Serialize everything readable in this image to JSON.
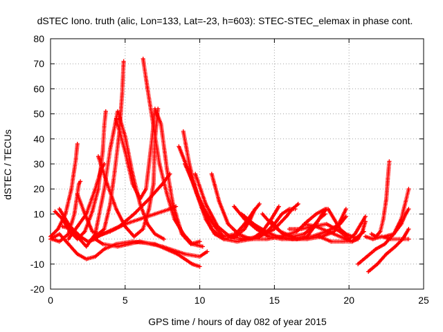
{
  "chart_data": {
    "type": "scatter",
    "title": "dSTEC Iono. truth (alic, Lon=133, Lat=-23, h=603): STEC-STEC_elemax in phase cont.",
    "xlabel": "GPS time / hours of day 082 of year 2015",
    "ylabel": "dSTEC  / TECUs",
    "xlim": [
      0,
      25
    ],
    "ylim": [
      -20,
      80
    ],
    "xticks": [
      0,
      5,
      10,
      15,
      20,
      25
    ],
    "yticks": [
      -20,
      -10,
      0,
      10,
      20,
      30,
      40,
      50,
      60,
      70,
      80
    ],
    "grid": true,
    "marker": "plus",
    "color": "#ff0000",
    "series": [
      {
        "points": [
          [
            0.0,
            1
          ],
          [
            0.5,
            4
          ],
          [
            1.0,
            10
          ],
          [
            1.4,
            20
          ],
          [
            1.7,
            32
          ],
          [
            1.8,
            38
          ]
        ]
      },
      {
        "points": [
          [
            0.1,
            0
          ],
          [
            0.6,
            -1
          ],
          [
            1.2,
            2
          ],
          [
            1.6,
            10
          ],
          [
            1.9,
            22
          ],
          [
            2.0,
            23
          ]
        ]
      },
      {
        "points": [
          [
            0.0,
            0
          ],
          [
            0.6,
            2
          ],
          [
            1.2,
            -2
          ],
          [
            1.8,
            -6
          ],
          [
            2.4,
            -8
          ],
          [
            3.0,
            -7
          ],
          [
            3.6,
            -4
          ],
          [
            4.4,
            -2
          ],
          [
            5.5,
            -1
          ],
          [
            7.0,
            -2
          ],
          [
            8.5,
            -6
          ],
          [
            9.5,
            -10
          ],
          [
            10.0,
            -11
          ]
        ]
      },
      {
        "points": [
          [
            0.8,
            5
          ],
          [
            1.5,
            4
          ],
          [
            2.0,
            1
          ],
          [
            2.5,
            -1
          ],
          [
            3.0,
            0
          ],
          [
            3.5,
            -2
          ],
          [
            4.5,
            -3
          ],
          [
            6.0,
            -1
          ],
          [
            7.5,
            -3
          ],
          [
            9.0,
            -6
          ],
          [
            10.0,
            -7
          ],
          [
            10.5,
            -5
          ]
        ]
      },
      {
        "points": [
          [
            0.3,
            11
          ],
          [
            0.8,
            8
          ],
          [
            1.3,
            3
          ],
          [
            1.8,
            0
          ],
          [
            2.3,
            3
          ],
          [
            2.8,
            11
          ],
          [
            3.2,
            20
          ],
          [
            3.5,
            35
          ],
          [
            3.6,
            45
          ],
          [
            3.7,
            51
          ]
        ]
      },
      {
        "points": [
          [
            1.8,
            18
          ],
          [
            2.3,
            10
          ],
          [
            2.8,
            3
          ],
          [
            3.2,
            2
          ],
          [
            3.6,
            4
          ],
          [
            4.0,
            14
          ],
          [
            4.3,
            27
          ],
          [
            4.6,
            42
          ],
          [
            4.8,
            58
          ],
          [
            4.9,
            71
          ]
        ]
      },
      {
        "points": [
          [
            0.6,
            12
          ],
          [
            1.2,
            6
          ],
          [
            1.8,
            1
          ],
          [
            2.4,
            -3
          ],
          [
            3.0,
            2
          ],
          [
            3.6,
            20
          ],
          [
            4.0,
            36
          ],
          [
            4.5,
            51
          ],
          [
            5.0,
            41
          ],
          [
            5.5,
            26
          ],
          [
            6.0,
            14
          ],
          [
            6.5,
            6
          ],
          [
            7.0,
            2
          ],
          [
            7.6,
            0
          ]
        ]
      },
      {
        "points": [
          [
            3.2,
            33
          ],
          [
            3.8,
            22
          ],
          [
            4.4,
            12
          ],
          [
            5.0,
            5
          ],
          [
            5.6,
            1
          ],
          [
            6.2,
            4
          ],
          [
            6.6,
            12
          ],
          [
            6.9,
            22
          ],
          [
            7.0,
            40
          ],
          [
            7.2,
            52
          ]
        ]
      },
      {
        "points": [
          [
            4.4,
            48
          ],
          [
            5.0,
            35
          ],
          [
            5.5,
            22
          ],
          [
            6.0,
            16
          ],
          [
            6.4,
            20
          ],
          [
            6.8,
            40
          ],
          [
            7.0,
            52
          ],
          [
            7.4,
            46
          ],
          [
            7.8,
            28
          ],
          [
            8.2,
            14
          ],
          [
            8.8,
            2
          ],
          [
            9.4,
            -2
          ],
          [
            10.0,
            -1
          ]
        ]
      },
      {
        "points": [
          [
            6.2,
            72
          ],
          [
            6.5,
            60
          ],
          [
            6.9,
            45
          ],
          [
            7.3,
            30
          ],
          [
            7.8,
            18
          ],
          [
            8.3,
            8
          ],
          [
            8.9,
            2
          ],
          [
            9.5,
            -2
          ],
          [
            10.2,
            -3
          ]
        ]
      },
      {
        "points": [
          [
            2.6,
            -1
          ],
          [
            3.5,
            2
          ],
          [
            4.6,
            5
          ],
          [
            5.6,
            10
          ],
          [
            6.6,
            16
          ],
          [
            7.5,
            22
          ],
          [
            8.0,
            26
          ]
        ]
      },
      {
        "points": [
          [
            3.0,
            1
          ],
          [
            4.0,
            3
          ],
          [
            5.0,
            6
          ],
          [
            6.0,
            8
          ],
          [
            7.0,
            10
          ],
          [
            8.0,
            12
          ],
          [
            8.4,
            13
          ]
        ]
      },
      {
        "points": [
          [
            1.2,
            0
          ],
          [
            1.8,
            5
          ],
          [
            2.4,
            10
          ],
          [
            3.0,
            20
          ],
          [
            3.4,
            28
          ],
          [
            3.6,
            30
          ]
        ]
      },
      {
        "points": [
          [
            8.9,
            43
          ],
          [
            9.3,
            30
          ],
          [
            9.8,
            18
          ],
          [
            10.4,
            8
          ],
          [
            11.0,
            2
          ],
          [
            11.6,
            0
          ],
          [
            12.4,
            1
          ],
          [
            13.0,
            4
          ],
          [
            13.4,
            8
          ],
          [
            13.7,
            12
          ]
        ]
      },
      {
        "points": [
          [
            8.6,
            37
          ],
          [
            9.2,
            28
          ],
          [
            9.8,
            18
          ],
          [
            10.4,
            11
          ],
          [
            11.0,
            5
          ],
          [
            11.6,
            1
          ],
          [
            12.4,
            2
          ],
          [
            13.0,
            6
          ],
          [
            13.6,
            11
          ],
          [
            14.0,
            14
          ]
        ]
      },
      {
        "points": [
          [
            9.0,
            30
          ],
          [
            9.6,
            22
          ],
          [
            10.2,
            12
          ],
          [
            10.8,
            4
          ],
          [
            11.6,
            0
          ],
          [
            12.5,
            -1
          ],
          [
            13.5,
            0
          ],
          [
            14.2,
            3
          ],
          [
            14.8,
            8
          ],
          [
            15.3,
            13
          ]
        ]
      },
      {
        "points": [
          [
            9.7,
            26
          ],
          [
            10.4,
            14
          ],
          [
            11.2,
            5
          ],
          [
            12.0,
            1
          ],
          [
            13.0,
            0
          ],
          [
            14.0,
            1
          ],
          [
            15.0,
            4
          ],
          [
            15.8,
            9
          ],
          [
            16.2,
            12
          ],
          [
            16.6,
            14
          ]
        ]
      },
      {
        "points": [
          [
            10.8,
            26
          ],
          [
            11.3,
            15
          ],
          [
            11.9,
            6
          ],
          [
            12.6,
            2
          ],
          [
            13.4,
            0
          ],
          [
            14.5,
            0
          ],
          [
            15.5,
            1
          ],
          [
            16.5,
            3
          ],
          [
            17.2,
            7
          ],
          [
            17.8,
            10
          ],
          [
            18.4,
            12
          ]
        ]
      },
      {
        "points": [
          [
            12.3,
            13
          ],
          [
            13.0,
            8
          ],
          [
            13.8,
            4
          ],
          [
            14.6,
            1
          ],
          [
            15.5,
            0
          ],
          [
            16.5,
            0
          ],
          [
            17.5,
            1
          ],
          [
            18.5,
            3
          ],
          [
            19.4,
            6
          ],
          [
            19.8,
            9
          ]
        ]
      },
      {
        "points": [
          [
            12.8,
            10
          ],
          [
            13.6,
            6
          ],
          [
            14.4,
            3
          ],
          [
            15.2,
            1
          ],
          [
            16.2,
            0
          ],
          [
            17.2,
            0
          ],
          [
            18.2,
            1
          ],
          [
            19.0,
            3
          ],
          [
            19.4,
            7
          ],
          [
            19.8,
            12
          ]
        ]
      },
      {
        "points": [
          [
            13.0,
            9
          ],
          [
            13.8,
            5
          ],
          [
            14.5,
            3
          ],
          [
            15.0,
            6
          ],
          [
            15.5,
            10
          ],
          [
            16.0,
            12
          ],
          [
            16.4,
            12
          ]
        ]
      },
      {
        "points": [
          [
            14.2,
            10
          ],
          [
            14.8,
            6
          ],
          [
            15.6,
            2
          ],
          [
            16.5,
            0
          ],
          [
            17.2,
            1
          ],
          [
            17.8,
            6
          ],
          [
            18.2,
            10
          ],
          [
            18.5,
            12
          ]
        ]
      },
      {
        "points": [
          [
            14.8,
            7
          ],
          [
            15.4,
            3
          ],
          [
            16.2,
            1
          ],
          [
            17.0,
            2
          ],
          [
            17.6,
            5
          ],
          [
            18.0,
            8
          ],
          [
            18.4,
            10
          ]
        ]
      },
      {
        "points": [
          [
            16.0,
            4
          ],
          [
            16.8,
            4
          ],
          [
            17.6,
            5
          ],
          [
            18.5,
            6
          ],
          [
            19.4,
            3
          ],
          [
            20.0,
            0
          ],
          [
            20.4,
            2
          ],
          [
            20.8,
            6
          ],
          [
            21.1,
            9
          ]
        ]
      },
      {
        "points": [
          [
            17.0,
            6
          ],
          [
            17.8,
            5
          ],
          [
            18.6,
            3
          ],
          [
            19.4,
            1
          ],
          [
            20.2,
            -1
          ],
          [
            20.6,
            0
          ],
          [
            20.9,
            3
          ],
          [
            21.1,
            7
          ]
        ]
      },
      {
        "points": [
          [
            18.0,
            1
          ],
          [
            18.8,
            -1
          ],
          [
            19.6,
            -1
          ],
          [
            20.2,
            -1
          ],
          [
            20.6,
            1
          ],
          [
            21.0,
            3
          ]
        ]
      },
      {
        "points": [
          [
            18.6,
            12
          ],
          [
            19.0,
            8
          ],
          [
            19.4,
            4
          ],
          [
            19.8,
            2
          ],
          [
            20.2,
            1
          ],
          [
            20.6,
            0
          ]
        ]
      },
      {
        "points": [
          [
            21.1,
            1
          ],
          [
            21.6,
            0
          ],
          [
            22.2,
            1
          ],
          [
            22.8,
            0
          ],
          [
            23.4,
            0
          ],
          [
            24.0,
            0
          ]
        ]
      },
      {
        "points": [
          [
            21.5,
            2
          ],
          [
            21.8,
            1
          ],
          [
            22.1,
            3
          ],
          [
            22.3,
            8
          ],
          [
            22.5,
            16
          ],
          [
            22.6,
            24
          ],
          [
            22.7,
            31
          ]
        ]
      },
      {
        "points": [
          [
            20.6,
            -10
          ],
          [
            21.2,
            -7
          ],
          [
            21.8,
            -4
          ],
          [
            22.4,
            -2
          ],
          [
            23.0,
            2
          ],
          [
            23.5,
            8
          ],
          [
            23.8,
            15
          ],
          [
            24.0,
            20
          ]
        ]
      },
      {
        "points": [
          [
            21.3,
            -13
          ],
          [
            21.9,
            -10
          ],
          [
            22.5,
            -6
          ],
          [
            23.1,
            -3
          ],
          [
            23.6,
            0
          ],
          [
            24.0,
            4
          ]
        ]
      },
      {
        "points": [
          [
            22.4,
            1
          ],
          [
            23.0,
            2
          ],
          [
            23.5,
            6
          ],
          [
            23.8,
            10
          ],
          [
            24.0,
            12
          ]
        ]
      }
    ]
  }
}
